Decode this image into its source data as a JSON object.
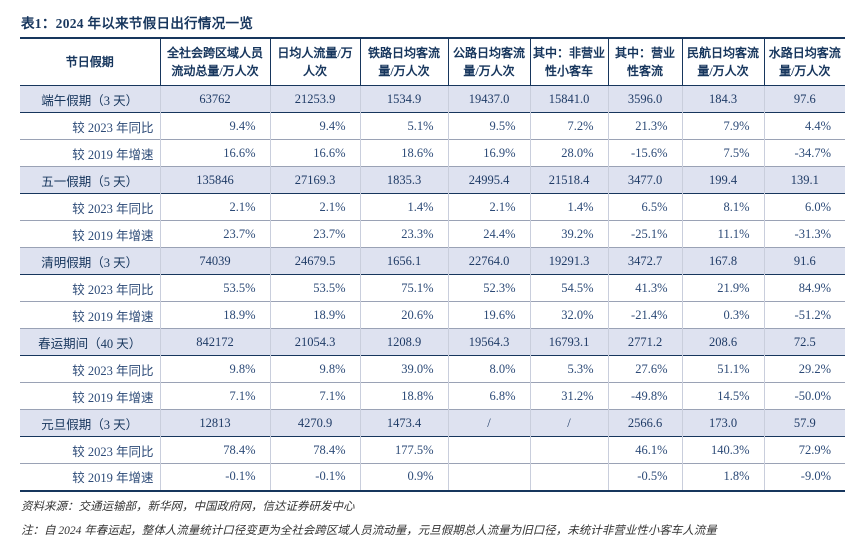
{
  "title": "表1：2024 年以来节假日出行情况一览",
  "colors": {
    "navy": "#17365D",
    "data-blue": "#2C4A77",
    "section-bg": "#DEE2F0",
    "grid-light": "#C9CEDC",
    "grid-sub": "#9AA2B5"
  },
  "table": {
    "columns": [
      "节日假期",
      "全社会跨区域人员流动总量/万人次",
      "日均人流量/万人次",
      "铁路日均客流量/万人次",
      "公路日均客流量/万人次",
      "其中：非营业性小客车",
      "其中：营业性客流",
      "民航日均客流量/万人次",
      "水路日均客流量/万人次"
    ],
    "rows": [
      {
        "type": "section",
        "label": "端午假期（3 天）",
        "values": [
          "63762",
          "21253.9",
          "1534.9",
          "19437.0",
          "15841.0",
          "3596.0",
          "184.3",
          "97.6"
        ]
      },
      {
        "type": "sub",
        "label": "较 2023 年同比",
        "values": [
          "9.4%",
          "9.4%",
          "5.1%",
          "9.5%",
          "7.2%",
          "21.3%",
          "7.9%",
          "4.4%"
        ]
      },
      {
        "type": "sub",
        "label": "较 2019 年增速",
        "values": [
          "16.6%",
          "16.6%",
          "18.6%",
          "16.9%",
          "28.0%",
          "-15.6%",
          "7.5%",
          "-34.7%"
        ]
      },
      {
        "type": "section",
        "label": "五一假期（5 天）",
        "values": [
          "135846",
          "27169.3",
          "1835.3",
          "24995.4",
          "21518.4",
          "3477.0",
          "199.4",
          "139.1"
        ]
      },
      {
        "type": "sub",
        "label": "较 2023 年同比",
        "values": [
          "2.1%",
          "2.1%",
          "1.4%",
          "2.1%",
          "1.4%",
          "6.5%",
          "8.1%",
          "6.0%"
        ]
      },
      {
        "type": "sub",
        "label": "较 2019 年增速",
        "values": [
          "23.7%",
          "23.7%",
          "23.3%",
          "24.4%",
          "39.2%",
          "-25.1%",
          "11.1%",
          "-31.3%"
        ]
      },
      {
        "type": "section",
        "label": "清明假期（3 天）",
        "values": [
          "74039",
          "24679.5",
          "1656.1",
          "22764.0",
          "19291.3",
          "3472.7",
          "167.8",
          "91.6"
        ]
      },
      {
        "type": "sub",
        "label": "较 2023 年同比",
        "values": [
          "53.5%",
          "53.5%",
          "75.1%",
          "52.3%",
          "54.5%",
          "41.3%",
          "21.9%",
          "84.9%"
        ]
      },
      {
        "type": "sub",
        "label": "较 2019 年增速",
        "values": [
          "18.9%",
          "18.9%",
          "20.6%",
          "19.6%",
          "32.0%",
          "-21.4%",
          "0.3%",
          "-51.2%"
        ]
      },
      {
        "type": "section",
        "label": "春运期间（40 天）",
        "values": [
          "842172",
          "21054.3",
          "1208.9",
          "19564.3",
          "16793.1",
          "2771.2",
          "208.6",
          "72.5"
        ]
      },
      {
        "type": "sub",
        "label": "较 2023 年同比",
        "values": [
          "9.8%",
          "9.8%",
          "39.0%",
          "8.0%",
          "5.3%",
          "27.6%",
          "51.1%",
          "29.2%"
        ]
      },
      {
        "type": "sub",
        "label": "较 2019 年增速",
        "values": [
          "7.1%",
          "7.1%",
          "18.8%",
          "6.8%",
          "31.2%",
          "-49.8%",
          "14.5%",
          "-50.0%"
        ]
      },
      {
        "type": "section",
        "label": "元旦假期（3 天）",
        "values": [
          "12813",
          "4270.9",
          "1473.4",
          "/",
          "/",
          "2566.6",
          "173.0",
          "57.9"
        ]
      },
      {
        "type": "sub",
        "label": "较 2023 年同比",
        "values": [
          "78.4%",
          "78.4%",
          "177.5%",
          "",
          "",
          "46.1%",
          "140.3%",
          "72.9%"
        ]
      },
      {
        "type": "sub",
        "label": "较 2019 年增速",
        "values": [
          "-0.1%",
          "-0.1%",
          "0.9%",
          "",
          "",
          "-0.5%",
          "1.8%",
          "-9.0%"
        ]
      }
    ]
  },
  "footer": {
    "source": "资料来源：交通运输部，新华网，中国政府网，信达证券研发中心",
    "note": "注：自 2024 年春运起，整体人流量统计口径变更为全社会跨区域人员流动量，元旦假期总人流量为旧口径，未统计非营业性小客车人流量"
  }
}
